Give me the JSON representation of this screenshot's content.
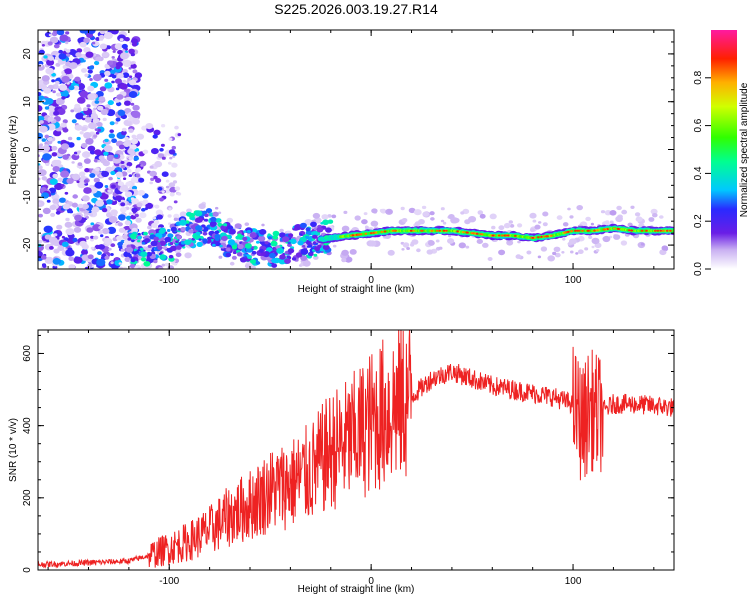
{
  "title": "S225.2026.003.19.27.R14",
  "chart_data": [
    {
      "type": "heatmap",
      "xlabel": "Height of straight line (km)",
      "ylabel": "Frequency (Hz)",
      "xlim": [
        -165,
        150
      ],
      "ylim": [
        -25,
        25
      ],
      "xticks": [
        -100,
        0,
        100
      ],
      "yticks": [
        -20,
        -10,
        0,
        10,
        20
      ],
      "colorbar": {
        "label": "Normalized spectral amplitude",
        "ticks": [
          0.0,
          0.2,
          0.4,
          0.6,
          0.8
        ],
        "range": [
          0,
          1
        ],
        "colormap": "white-purple-blue-cyan-green-yellow-red-magenta"
      },
      "ridge": {
        "description_points_x": [
          -115,
          -100,
          -90,
          -80,
          -70,
          -60,
          -50,
          -40,
          -30,
          -20,
          -10,
          0,
          10,
          20,
          30,
          40,
          50,
          60,
          70,
          80,
          90,
          100,
          110,
          120,
          130,
          140,
          148
        ],
        "description_points_y": [
          -21,
          -20,
          -17,
          -16,
          -19,
          -20,
          -21,
          -20,
          -19,
          -18.5,
          -18,
          -17.5,
          -17,
          -17,
          -17,
          -17,
          -17.5,
          -18,
          -18,
          -18.5,
          -18,
          -17,
          -17,
          -16.5,
          -17,
          -17,
          -17
        ]
      }
    },
    {
      "type": "line",
      "xlabel": "Height of straight line (km)",
      "ylabel": "SNR (10 * v/v)",
      "xlim": [
        -165,
        150
      ],
      "ylim": [
        0,
        665
      ],
      "xticks": [
        -100,
        0,
        100
      ],
      "yticks": [
        0,
        200,
        400,
        600
      ],
      "color": "#ee2222",
      "envelope_x": [
        -165,
        -140,
        -120,
        -110,
        -100,
        -90,
        -80,
        -70,
        -60,
        -50,
        -40,
        -30,
        -20,
        -10,
        0,
        10,
        20,
        30,
        40,
        50,
        60,
        70,
        80,
        90,
        100,
        105,
        108,
        112,
        120,
        130,
        140,
        150
      ],
      "envelope_y": [
        15,
        20,
        25,
        40,
        60,
        80,
        110,
        150,
        180,
        220,
        240,
        270,
        330,
        360,
        410,
        450,
        480,
        530,
        550,
        530,
        510,
        500,
        490,
        480,
        460,
        400,
        450,
        430,
        460,
        460,
        455,
        450
      ]
    }
  ]
}
